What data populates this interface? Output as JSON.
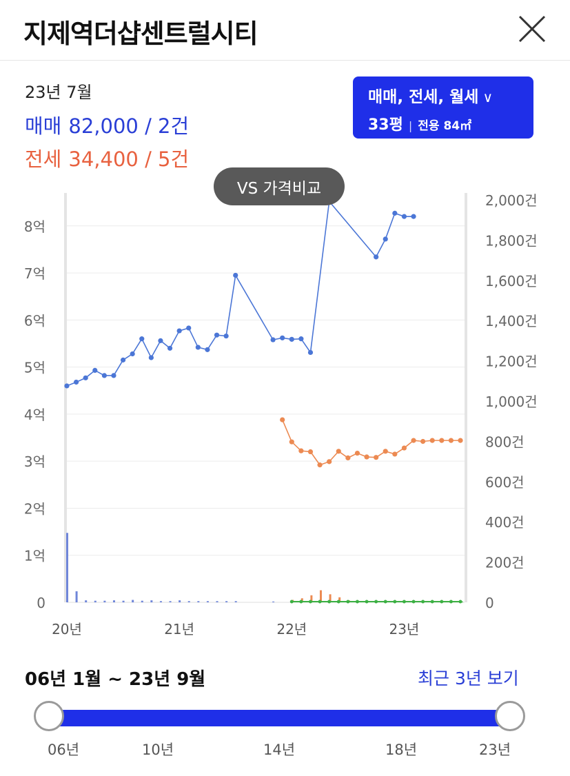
{
  "header": {
    "title": "지제역더샵센트럴시티"
  },
  "summary": {
    "period": "23년 7월",
    "sale_label": "매매",
    "sale_value": "82,000 / 2건",
    "jeonse_label": "전세",
    "jeonse_value": "34,400 / 5건"
  },
  "filter": {
    "trade_types": "매매, 전세, 월세",
    "pyeong": "33평",
    "area": "전용 84㎡"
  },
  "compare_button": "VS 가격비교",
  "colors": {
    "sale": "#4b76d6",
    "jeonse": "#ec8a52",
    "volume_sale": "#6f86d9",
    "volume_jeonse": "#ec8a52",
    "volume_monthly": "#3cb043",
    "accent": "#1f2fe8"
  },
  "chart_data": {
    "type": "line",
    "x_ticks": [
      "20년",
      "21년",
      "22년",
      "23년"
    ],
    "y_left_ticks": [
      "0",
      "1억",
      "2억",
      "3억",
      "4억",
      "5억",
      "6억",
      "7억",
      "8억"
    ],
    "y_right_ticks": [
      "0",
      "200건",
      "400건",
      "600건",
      "800건",
      "1,000건",
      "1,200건",
      "1,400건",
      "1,600건",
      "1,800건",
      "2,000건"
    ],
    "y_left_range": [
      0,
      8.7
    ],
    "y_right_range": [
      0,
      2000
    ],
    "grid": true,
    "series": [
      {
        "name": "매매",
        "x": [
          "20-01",
          "20-02",
          "20-03",
          "20-04",
          "20-05",
          "20-06",
          "20-07",
          "20-08",
          "20-09",
          "20-10",
          "20-11",
          "20-12",
          "21-01",
          "21-02",
          "21-03",
          "21-04",
          "21-05",
          "21-06",
          "21-07",
          "21-11",
          "21-12",
          "22-01",
          "22-02",
          "22-03",
          "22-05",
          "22-10",
          "22-11",
          "22-12",
          "23-01",
          "23-02"
        ],
        "values": [
          4.6,
          4.68,
          4.77,
          4.93,
          4.82,
          4.82,
          5.15,
          5.28,
          5.6,
          5.2,
          5.56,
          5.4,
          5.77,
          5.83,
          5.42,
          5.37,
          5.68,
          5.66,
          6.95,
          5.58,
          5.62,
          5.59,
          5.6,
          5.31,
          8.52,
          7.34,
          7.72,
          8.27,
          8.2,
          8.2
        ]
      },
      {
        "name": "전세",
        "x": [
          "21-12",
          "22-01",
          "22-02",
          "22-03",
          "22-04",
          "22-05",
          "22-06",
          "22-07",
          "22-08",
          "22-09",
          "22-10",
          "22-11",
          "22-12",
          "23-01",
          "23-02",
          "23-03",
          "23-04",
          "23-05",
          "23-06",
          "23-07"
        ],
        "values": [
          3.88,
          3.41,
          3.22,
          3.2,
          2.92,
          2.99,
          3.21,
          3.07,
          3.17,
          3.09,
          3.08,
          3.21,
          3.15,
          3.28,
          3.44,
          3.42,
          3.44,
          3.44,
          3.44,
          3.44
        ]
      }
    ],
    "volume": {
      "sale": {
        "x": [
          "20-01",
          "20-02",
          "20-03",
          "20-04",
          "20-05",
          "20-06",
          "20-07",
          "20-08",
          "20-09",
          "20-10",
          "20-11",
          "20-12",
          "21-01",
          "21-02",
          "21-03",
          "21-04",
          "21-05",
          "21-06",
          "21-07",
          "21-11",
          "22-01",
          "22-02",
          "22-03",
          "22-04",
          "22-05"
        ],
        "values": [
          345,
          55,
          10,
          8,
          8,
          10,
          8,
          12,
          8,
          10,
          6,
          6,
          10,
          6,
          6,
          6,
          6,
          6,
          6,
          4,
          4,
          6,
          10,
          6,
          6
        ]
      },
      "jeonse": {
        "x": [
          "22-01",
          "22-02",
          "22-03",
          "22-04",
          "22-05",
          "22-06",
          "22-07",
          "22-08"
        ],
        "values": [
          12,
          20,
          35,
          60,
          40,
          25,
          10,
          6
        ]
      },
      "monthly": {
        "x": [
          "22-01",
          "22-02",
          "22-03",
          "22-04",
          "22-05",
          "22-06",
          "22-07",
          "22-08",
          "22-09",
          "22-10",
          "22-11",
          "22-12",
          "23-01",
          "23-02",
          "23-03",
          "23-04",
          "23-05",
          "23-06",
          "23-07"
        ],
        "values": [
          6,
          6,
          5,
          5,
          5,
          5,
          4,
          4,
          4,
          4,
          4,
          4,
          4,
          4,
          4,
          4,
          4,
          4,
          4
        ]
      }
    }
  },
  "range": {
    "label": "06년 1월 ~ 23년 9월",
    "recent_link": "최근 3년 보기",
    "slider_ticks": [
      "06년",
      "10년",
      "14년",
      "18년",
      "23년"
    ]
  }
}
